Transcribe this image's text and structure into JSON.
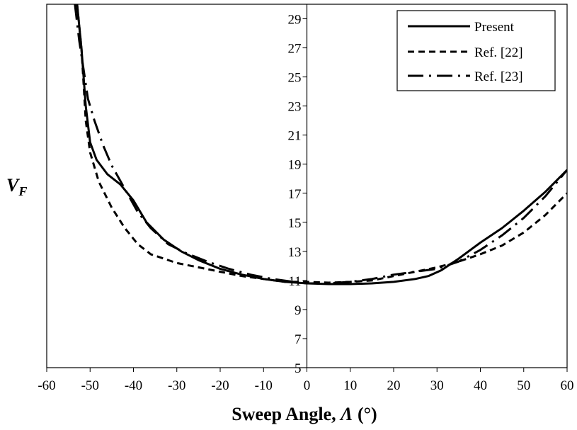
{
  "chart_data": {
    "type": "line",
    "xlabel_main": "Sweep Angle, ",
    "xlabel_symbol": "Λ",
    "xlabel_unit": " (°)",
    "ylabel_main": "V",
    "ylabel_sub": "F",
    "xlim": [
      -60,
      60
    ],
    "ylim": [
      5,
      30
    ],
    "xticks": [
      -60,
      -50,
      -40,
      -30,
      -20,
      -10,
      0,
      10,
      20,
      30,
      40,
      50,
      60
    ],
    "yticks": [
      5,
      7,
      9,
      11,
      13,
      15,
      17,
      19,
      21,
      23,
      25,
      27,
      29
    ],
    "grid": false,
    "legend_position": "top-right",
    "series": [
      {
        "name": "Present",
        "style": "solid",
        "points": [
          [
            -53.0,
            30.0
          ],
          [
            -52.0,
            27.0
          ],
          [
            -51.5,
            25.0
          ],
          [
            -51.0,
            23.0
          ],
          [
            -50.0,
            20.5
          ],
          [
            -48.5,
            19.3
          ],
          [
            -46.0,
            18.3
          ],
          [
            -43.0,
            17.6
          ],
          [
            -40.0,
            16.5
          ],
          [
            -37.0,
            15.0
          ],
          [
            -33.0,
            13.8
          ],
          [
            -29.0,
            13.0
          ],
          [
            -25.0,
            12.4
          ],
          [
            -20.0,
            11.8
          ],
          [
            -15.0,
            11.4
          ],
          [
            -10.0,
            11.1
          ],
          [
            -5.0,
            10.9
          ],
          [
            0.0,
            10.8
          ],
          [
            5.0,
            10.75
          ],
          [
            10.0,
            10.75
          ],
          [
            15.0,
            10.8
          ],
          [
            20.0,
            10.9
          ],
          [
            25.0,
            11.1
          ],
          [
            28.0,
            11.3
          ],
          [
            31.0,
            11.7
          ],
          [
            35.0,
            12.5
          ],
          [
            40.0,
            13.6
          ],
          [
            45.0,
            14.6
          ],
          [
            50.0,
            15.8
          ],
          [
            55.0,
            17.1
          ],
          [
            60.0,
            18.6
          ]
        ]
      },
      {
        "name": "Ref. [22]",
        "style": "dashed",
        "points": [
          [
            -53.0,
            30.0
          ],
          [
            -52.0,
            27.0
          ],
          [
            -51.5,
            24.5
          ],
          [
            -51.0,
            22.0
          ],
          [
            -50.0,
            19.8
          ],
          [
            -48.0,
            17.8
          ],
          [
            -45.0,
            16.0
          ],
          [
            -42.0,
            14.6
          ],
          [
            -39.0,
            13.5
          ],
          [
            -36.0,
            12.8
          ],
          [
            -30.0,
            12.2
          ],
          [
            -25.0,
            11.9
          ],
          [
            -20.0,
            11.6
          ],
          [
            -15.0,
            11.3
          ],
          [
            -10.0,
            11.1
          ],
          [
            -5.0,
            10.9
          ],
          [
            0.0,
            10.9
          ],
          [
            5.0,
            10.85
          ],
          [
            10.0,
            10.9
          ],
          [
            15.0,
            11.0
          ],
          [
            20.0,
            11.3
          ],
          [
            25.0,
            11.6
          ],
          [
            30.0,
            11.9
          ],
          [
            35.0,
            12.3
          ],
          [
            40.0,
            12.8
          ],
          [
            45.0,
            13.4
          ],
          [
            50.0,
            14.3
          ],
          [
            55.0,
            15.5
          ],
          [
            60.0,
            17.0
          ]
        ]
      },
      {
        "name": "Ref. [23]",
        "style": "dash-dot",
        "points": [
          [
            -53.5,
            30.0
          ],
          [
            -52.5,
            27.5
          ],
          [
            -51.5,
            25.5
          ],
          [
            -50.5,
            23.5
          ],
          [
            -49.0,
            22.0
          ],
          [
            -47.0,
            20.3
          ],
          [
            -45.0,
            18.9
          ],
          [
            -42.0,
            17.3
          ],
          [
            -39.0,
            15.7
          ],
          [
            -36.0,
            14.6
          ],
          [
            -32.0,
            13.5
          ],
          [
            -28.0,
            12.9
          ],
          [
            -23.0,
            12.3
          ],
          [
            -18.0,
            11.8
          ],
          [
            -13.0,
            11.4
          ],
          [
            -8.0,
            11.1
          ],
          [
            -3.0,
            10.9
          ],
          [
            0.0,
            10.8
          ],
          [
            5.0,
            10.8
          ],
          [
            10.0,
            10.9
          ],
          [
            15.0,
            11.1
          ],
          [
            20.0,
            11.4
          ],
          [
            25.0,
            11.6
          ],
          [
            30.0,
            11.8
          ],
          [
            35.0,
            12.3
          ],
          [
            40.0,
            13.1
          ],
          [
            45.0,
            14.1
          ],
          [
            50.0,
            15.3
          ],
          [
            55.0,
            16.8
          ],
          [
            60.0,
            18.6
          ]
        ]
      }
    ]
  }
}
